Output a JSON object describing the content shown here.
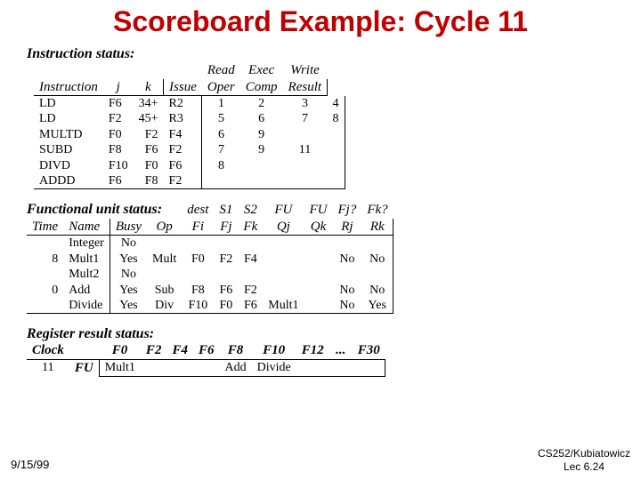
{
  "title": "Scoreboard Example: Cycle 11",
  "title_color": "#c00000",
  "title_font": "Comic Sans MS",
  "title_fontsize": 32,
  "body_font": "Times New Roman",
  "background_color": "#ffffff",
  "instruction_status": {
    "section_label": "Instruction status:",
    "headers_top": [
      "Read",
      "Exec",
      "Write"
    ],
    "headers_bot": [
      "Instruction",
      "j",
      "k",
      "Issue",
      "Oper",
      "Comp",
      "Result"
    ],
    "rows": [
      {
        "instr": "LD",
        "dest": "F6",
        "j": "34+",
        "k": "R2",
        "issue": "1",
        "read": "2",
        "exec": "3",
        "write": "4"
      },
      {
        "instr": "LD",
        "dest": "F2",
        "j": "45+",
        "k": "R3",
        "issue": "5",
        "read": "6",
        "exec": "7",
        "write": "8"
      },
      {
        "instr": "MULTD",
        "dest": "F0",
        "j": "F2",
        "k": "F4",
        "issue": "6",
        "read": "9",
        "exec": "",
        "write": ""
      },
      {
        "instr": "SUBD",
        "dest": "F8",
        "j": "F6",
        "k": "F2",
        "issue": "7",
        "read": "9",
        "exec": "11",
        "write": ""
      },
      {
        "instr": "DIVD",
        "dest": "F10",
        "j": "F0",
        "k": "F6",
        "issue": "8",
        "read": "",
        "exec": "",
        "write": ""
      },
      {
        "instr": "ADDD",
        "dest": "F6",
        "j": "F8",
        "k": "F2",
        "issue": "",
        "read": "",
        "exec": "",
        "write": ""
      }
    ]
  },
  "functional_unit_status": {
    "section_label": "Functional unit status:",
    "headers_top": [
      "dest",
      "S1",
      "S2",
      "FU",
      "FU",
      "Fj?",
      "Fk?"
    ],
    "headers_bot": [
      "Time",
      "Name",
      "Busy",
      "Op",
      "Fi",
      "Fj",
      "Fk",
      "Qj",
      "Qk",
      "Rj",
      "Rk"
    ],
    "rows": [
      {
        "time": "",
        "name": "Integer",
        "busy": "No",
        "op": "",
        "fi": "",
        "fj": "",
        "fk": "",
        "qj": "",
        "qk": "",
        "rj": "",
        "rk": ""
      },
      {
        "time": "8",
        "name": "Mult1",
        "busy": "Yes",
        "op": "Mult",
        "fi": "F0",
        "fj": "F2",
        "fk": "F4",
        "qj": "",
        "qk": "",
        "rj": "No",
        "rk": "No"
      },
      {
        "time": "",
        "name": "Mult2",
        "busy": "No",
        "op": "",
        "fi": "",
        "fj": "",
        "fk": "",
        "qj": "",
        "qk": "",
        "rj": "",
        "rk": ""
      },
      {
        "time": "0",
        "name": "Add",
        "busy": "Yes",
        "op": "Sub",
        "fi": "F8",
        "fj": "F6",
        "fk": "F2",
        "qj": "",
        "qk": "",
        "rj": "No",
        "rk": "No"
      },
      {
        "time": "",
        "name": "Divide",
        "busy": "Yes",
        "op": "Div",
        "fi": "F10",
        "fj": "F0",
        "fk": "F6",
        "qj": "Mult1",
        "qk": "",
        "rj": "No",
        "rk": "Yes"
      }
    ]
  },
  "register_result_status": {
    "section_label": "Register result status:",
    "clock_label": "Clock",
    "clock_value": "11",
    "fu_label": "FU",
    "regs": [
      "F0",
      "F2",
      "F4",
      "F6",
      "F8",
      "F10",
      "F12",
      "...",
      "F30"
    ],
    "fu": [
      "Mult1",
      "",
      "",
      "",
      "Add",
      "Divide",
      "",
      "",
      ""
    ]
  },
  "footer": {
    "date": "9/15/99",
    "course": "CS252/Kubiatowicz",
    "lec": "Lec 6.24"
  }
}
